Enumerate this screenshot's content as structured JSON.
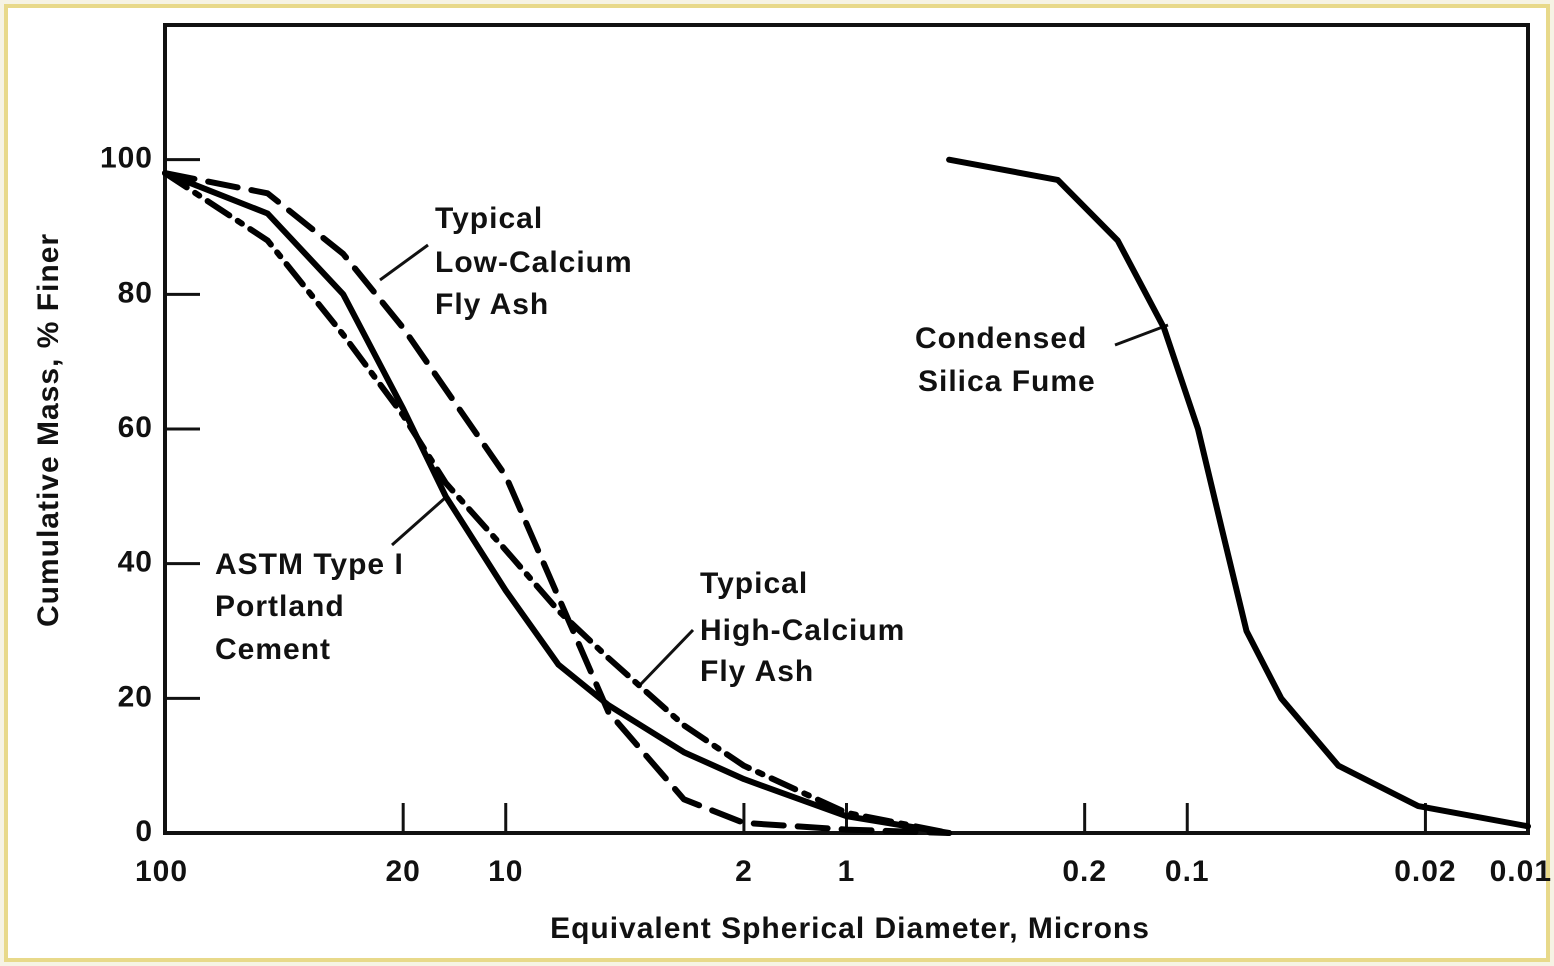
{
  "chart_data": {
    "type": "line",
    "xlabel": "Equivalent Spherical Diameter, Microns",
    "ylabel": "Cumulative Mass, % Finer",
    "xscale": "log",
    "xlim": [
      100,
      0.01
    ],
    "xticks": [
      100,
      20,
      10,
      2,
      1,
      0.2,
      0.1,
      0.02,
      0.01
    ],
    "ylim": [
      0,
      120
    ],
    "yticks": [
      0,
      20,
      40,
      60,
      80,
      100
    ],
    "series": [
      {
        "name": "ASTM Type I Portland Cement",
        "color": "#000000",
        "dash": "solid",
        "x": [
          100,
          50,
          30,
          20,
          15,
          10,
          7,
          5,
          3,
          2,
          1,
          0.5
        ],
        "values": [
          98,
          92,
          80,
          63,
          50,
          36,
          25,
          19,
          12,
          8,
          2.5,
          0
        ]
      },
      {
        "name": "Typical Low-Calcium Fly Ash",
        "color": "#000000",
        "dash": "dashed",
        "x": [
          100,
          50,
          30,
          20,
          10,
          7,
          5,
          3,
          2,
          1,
          0.5
        ],
        "values": [
          98,
          95,
          86,
          75,
          53,
          35,
          18,
          5,
          1.5,
          0.5,
          0
        ]
      },
      {
        "name": "Typical High-Calcium Fly Ash",
        "color": "#000000",
        "dash": "dashdot",
        "x": [
          100,
          50,
          30,
          20,
          15,
          10,
          7,
          5,
          3,
          2,
          1,
          0.5
        ],
        "values": [
          98,
          88,
          74,
          62,
          52,
          42,
          33,
          26,
          16,
          10,
          3,
          0
        ]
      },
      {
        "name": "Condensed Silica Fume",
        "color": "#000000",
        "dash": "solid",
        "x": [
          0.5,
          0.24,
          0.16,
          0.117,
          0.093,
          0.079,
          0.067,
          0.053,
          0.036,
          0.021,
          0.01
        ],
        "values": [
          100,
          97,
          88,
          75,
          60,
          45,
          30,
          20,
          10,
          4,
          1
        ]
      }
    ],
    "annotations": [
      [
        "Typical",
        "Low-Calcium",
        "Fly Ash"
      ],
      [
        "Condensed",
        "Silica Fume"
      ],
      [
        "ASTM Type I",
        "Portland",
        "Cement"
      ],
      [
        "Typical",
        "High-Calcium",
        "Fly Ash"
      ]
    ]
  }
}
